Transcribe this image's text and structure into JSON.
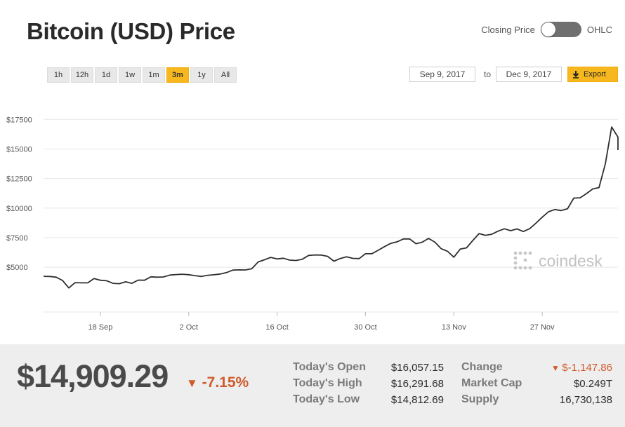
{
  "title": "Bitcoin (USD) Price",
  "toggle": {
    "left_label": "Closing Price",
    "right_label": "OHLC"
  },
  "ranges": [
    "1h",
    "12h",
    "1d",
    "1w",
    "1m",
    "3m",
    "1y",
    "All"
  ],
  "active_range": "3m",
  "date_from": "Sep 9, 2017",
  "date_to_label": "to",
  "date_to": "Dec 9, 2017",
  "export_label": "Export",
  "watermark": "coindesk",
  "colors": {
    "accent": "#f7b81f",
    "line": "#2f2f2f",
    "down": "#d05a2a"
  },
  "chart_data": {
    "type": "line",
    "title": "Bitcoin (USD) Price",
    "ylim": [
      2400,
      19000
    ],
    "yticks": [
      5000,
      7500,
      10000,
      12500,
      15000,
      17500
    ],
    "ytick_labels": [
      "$5000",
      "$7500",
      "$10000",
      "$12500",
      "$15000",
      "$17500"
    ],
    "x_dates": [
      "2017-09-09",
      "2017-12-09"
    ],
    "xticks": [
      {
        "date": "2017-09-18",
        "label": "18 Sep"
      },
      {
        "date": "2017-10-02",
        "label": "2 Oct"
      },
      {
        "date": "2017-10-16",
        "label": "16 Oct"
      },
      {
        "date": "2017-10-30",
        "label": "30 Oct"
      },
      {
        "date": "2017-11-13",
        "label": "13 Nov"
      },
      {
        "date": "2017-11-27",
        "label": "27 Nov"
      }
    ],
    "grid": true,
    "series": [
      {
        "points": [
          [
            "2017-09-09",
            4230
          ],
          [
            "2017-09-10",
            4220
          ],
          [
            "2017-09-11",
            4160
          ],
          [
            "2017-09-12",
            3880
          ],
          [
            "2017-09-13",
            3250
          ],
          [
            "2017-09-14",
            3700
          ],
          [
            "2017-09-15",
            3680
          ],
          [
            "2017-09-16",
            3680
          ],
          [
            "2017-09-17",
            4040
          ],
          [
            "2017-09-18",
            3900
          ],
          [
            "2017-09-19",
            3860
          ],
          [
            "2017-09-20",
            3640
          ],
          [
            "2017-09-21",
            3610
          ],
          [
            "2017-09-22",
            3770
          ],
          [
            "2017-09-23",
            3640
          ],
          [
            "2017-09-24",
            3910
          ],
          [
            "2017-09-25",
            3900
          ],
          [
            "2017-09-26",
            4190
          ],
          [
            "2017-09-27",
            4160
          ],
          [
            "2017-09-28",
            4180
          ],
          [
            "2017-09-29",
            4340
          ],
          [
            "2017-09-30",
            4380
          ],
          [
            "2017-10-01",
            4410
          ],
          [
            "2017-10-02",
            4370
          ],
          [
            "2017-10-03",
            4290
          ],
          [
            "2017-10-04",
            4220
          ],
          [
            "2017-10-05",
            4320
          ],
          [
            "2017-10-06",
            4360
          ],
          [
            "2017-10-07",
            4430
          ],
          [
            "2017-10-08",
            4550
          ],
          [
            "2017-10-09",
            4760
          ],
          [
            "2017-10-10",
            4780
          ],
          [
            "2017-10-11",
            4770
          ],
          [
            "2017-10-12",
            4880
          ],
          [
            "2017-10-13",
            5450
          ],
          [
            "2017-10-14",
            5630
          ],
          [
            "2017-10-15",
            5830
          ],
          [
            "2017-10-16",
            5700
          ],
          [
            "2017-10-17",
            5760
          ],
          [
            "2017-10-18",
            5600
          ],
          [
            "2017-10-19",
            5570
          ],
          [
            "2017-10-20",
            5680
          ],
          [
            "2017-10-21",
            6000
          ],
          [
            "2017-10-22",
            6040
          ],
          [
            "2017-10-23",
            6030
          ],
          [
            "2017-10-24",
            5920
          ],
          [
            "2017-10-25",
            5510
          ],
          [
            "2017-10-26",
            5740
          ],
          [
            "2017-10-27",
            5880
          ],
          [
            "2017-10-28",
            5750
          ],
          [
            "2017-10-29",
            5730
          ],
          [
            "2017-10-30",
            6140
          ],
          [
            "2017-10-31",
            6140
          ],
          [
            "2017-11-01",
            6430
          ],
          [
            "2017-11-02",
            6740
          ],
          [
            "2017-11-03",
            7020
          ],
          [
            "2017-11-04",
            7150
          ],
          [
            "2017-11-05",
            7390
          ],
          [
            "2017-11-06",
            7390
          ],
          [
            "2017-11-07",
            6990
          ],
          [
            "2017-11-08",
            7120
          ],
          [
            "2017-11-09",
            7440
          ],
          [
            "2017-11-10",
            7120
          ],
          [
            "2017-11-11",
            6570
          ],
          [
            "2017-11-12",
            6350
          ],
          [
            "2017-11-13",
            5850
          ],
          [
            "2017-11-14",
            6530
          ],
          [
            "2017-11-15",
            6640
          ],
          [
            "2017-11-16",
            7260
          ],
          [
            "2017-11-17",
            7850
          ],
          [
            "2017-11-18",
            7700
          ],
          [
            "2017-11-19",
            7790
          ],
          [
            "2017-11-20",
            8050
          ],
          [
            "2017-11-21",
            8250
          ],
          [
            "2017-11-22",
            8090
          ],
          [
            "2017-11-23",
            8240
          ],
          [
            "2017-11-24",
            8020
          ],
          [
            "2017-11-25",
            8260
          ],
          [
            "2017-11-26",
            8720
          ],
          [
            "2017-11-27",
            9230
          ],
          [
            "2017-11-28",
            9690
          ],
          [
            "2017-11-29",
            9880
          ],
          [
            "2017-11-30",
            9790
          ],
          [
            "2017-12-01",
            9940
          ],
          [
            "2017-12-02",
            10850
          ],
          [
            "2017-12-03",
            10870
          ],
          [
            "2017-12-04",
            11230
          ],
          [
            "2017-12-05",
            11620
          ],
          [
            "2017-12-06",
            11740
          ],
          [
            "2017-12-07",
            13740
          ],
          [
            "2017-12-08",
            16860
          ],
          [
            "2017-12-09",
            16000
          ],
          [
            "2017-12-10",
            14909
          ]
        ]
      }
    ]
  },
  "stats": {
    "price": "$14,909.29",
    "change_pct": "-7.15%",
    "rows": [
      {
        "label": "Today's Open",
        "value": "$16,057.15",
        "label2": "Change",
        "value2": "$-1,147.86"
      },
      {
        "label": "Today's High",
        "value": "$16,291.68",
        "label2": "Market Cap",
        "value2": "$0.249T"
      },
      {
        "label": "Today's Low",
        "value": "$14,812.69",
        "label2": "Supply",
        "value2": "16,730,138"
      }
    ]
  }
}
